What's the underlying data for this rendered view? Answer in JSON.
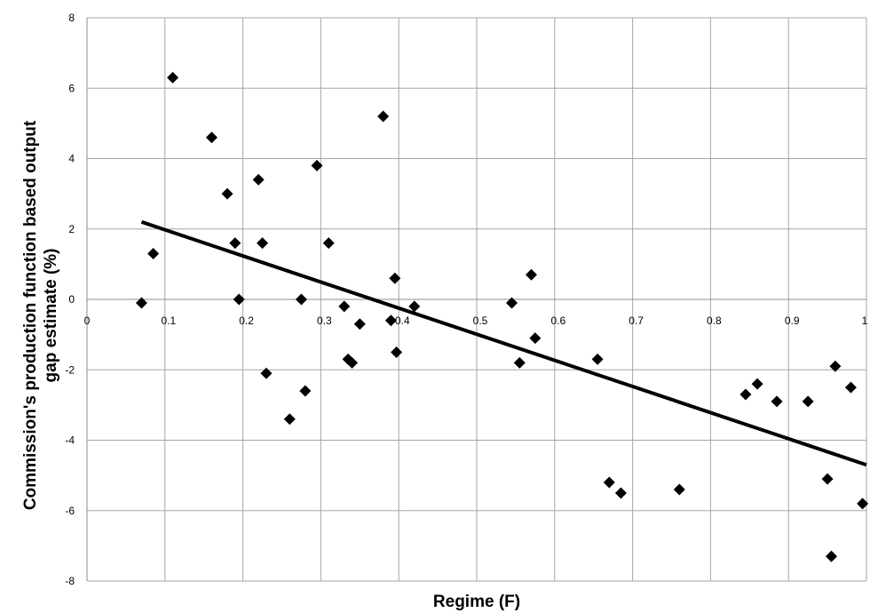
{
  "chart_data": {
    "type": "scatter",
    "xlabel": "Regime (F)",
    "ylabel_lines": [
      "Commission's production function based output",
      "gap estimate (%)"
    ],
    "xlim": [
      0,
      1
    ],
    "ylim": [
      -8,
      8
    ],
    "x_ticks": [
      0,
      0.1,
      0.2,
      0.3,
      0.4,
      0.5,
      0.6,
      0.7,
      0.8,
      0.9,
      1
    ],
    "x_tick_labels": [
      "0",
      "0.1",
      "0.2",
      "0.3",
      "0.4",
      "0.5",
      "0.6",
      "0.7",
      "0.8",
      "0.9",
      "1"
    ],
    "y_ticks": [
      -8,
      -6,
      -4,
      -2,
      0,
      2,
      4,
      6,
      8
    ],
    "y_tick_labels": [
      "-8",
      "-6",
      "-4",
      "-2",
      "0",
      "2",
      "4",
      "6",
      "8"
    ],
    "grid": true,
    "marker": "diamond",
    "marker_color": "#000000",
    "points": [
      {
        "x": 0.07,
        "y": -0.1
      },
      {
        "x": 0.085,
        "y": 1.3
      },
      {
        "x": 0.11,
        "y": 6.3
      },
      {
        "x": 0.16,
        "y": 4.6
      },
      {
        "x": 0.18,
        "y": 3.0
      },
      {
        "x": 0.19,
        "y": 1.6
      },
      {
        "x": 0.195,
        "y": 0.0
      },
      {
        "x": 0.22,
        "y": 3.4
      },
      {
        "x": 0.225,
        "y": 1.6
      },
      {
        "x": 0.23,
        "y": -2.1
      },
      {
        "x": 0.26,
        "y": -3.4
      },
      {
        "x": 0.275,
        "y": 0.0
      },
      {
        "x": 0.28,
        "y": -2.6
      },
      {
        "x": 0.295,
        "y": 3.8
      },
      {
        "x": 0.31,
        "y": 1.6
      },
      {
        "x": 0.33,
        "y": -0.2
      },
      {
        "x": 0.335,
        "y": -1.7
      },
      {
        "x": 0.34,
        "y": -1.8
      },
      {
        "x": 0.35,
        "y": -0.7
      },
      {
        "x": 0.38,
        "y": 5.2
      },
      {
        "x": 0.39,
        "y": -0.6
      },
      {
        "x": 0.395,
        "y": 0.6
      },
      {
        "x": 0.397,
        "y": -1.5
      },
      {
        "x": 0.42,
        "y": -0.2
      },
      {
        "x": 0.545,
        "y": -0.1
      },
      {
        "x": 0.555,
        "y": -1.8
      },
      {
        "x": 0.57,
        "y": 0.7
      },
      {
        "x": 0.575,
        "y": -1.1
      },
      {
        "x": 0.655,
        "y": -1.7
      },
      {
        "x": 0.67,
        "y": -5.2
      },
      {
        "x": 0.685,
        "y": -5.5
      },
      {
        "x": 0.76,
        "y": -5.4
      },
      {
        "x": 0.845,
        "y": -2.7
      },
      {
        "x": 0.86,
        "y": -2.4
      },
      {
        "x": 0.885,
        "y": -2.9
      },
      {
        "x": 0.925,
        "y": -2.9
      },
      {
        "x": 0.95,
        "y": -5.1
      },
      {
        "x": 0.955,
        "y": -7.3
      },
      {
        "x": 0.96,
        "y": -1.9
      },
      {
        "x": 0.98,
        "y": -2.5
      },
      {
        "x": 0.995,
        "y": -5.8
      }
    ],
    "trendline": {
      "x": [
        0.07,
        1.0
      ],
      "y": [
        2.2,
        -4.7
      ]
    }
  }
}
